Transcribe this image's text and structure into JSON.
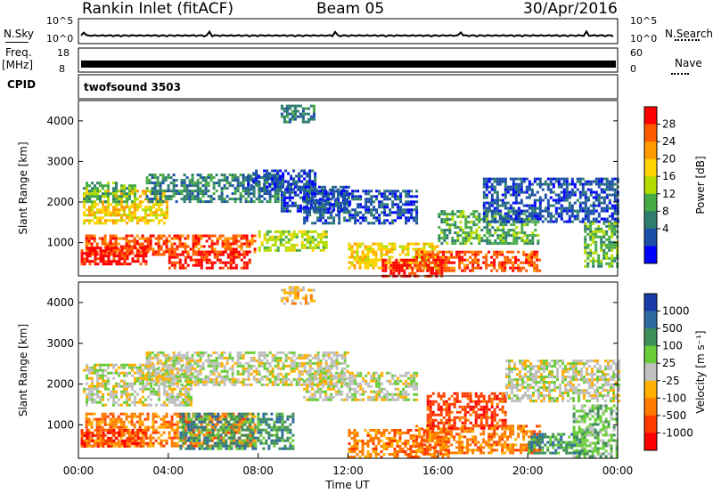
{
  "header": {
    "station": "Rankin Inlet (fitACF)",
    "beam": "Beam 05",
    "date": "30/Apr/2016"
  },
  "noise_panel": {
    "left_label": "N.Sky",
    "right_label": "N.Search",
    "left_ticks": [
      "10^5",
      "10^0"
    ],
    "right_ticks": [
      "10^5",
      "10^0"
    ]
  },
  "freq_panel": {
    "left_label_top": "Freq.",
    "left_label_unit": "[MHz]",
    "right_label": "Nave",
    "left_ticks": [
      "18",
      "8"
    ],
    "right_ticks": [
      "60",
      "0"
    ]
  },
  "cpid_panel": {
    "label": "CPID",
    "value": "twofsound 3503"
  },
  "chart_data": [
    {
      "type": "heatmap",
      "name": "power",
      "ylabel": "Slant Range [km]",
      "ylim": [
        180,
        4500
      ],
      "yticks": [
        "4000",
        "3000",
        "2000",
        "1000"
      ],
      "ytick_values": [
        4000,
        3000,
        2000,
        1000
      ],
      "xlim": [
        0,
        24
      ],
      "colorbar": {
        "label": "Power [dB]",
        "ticks": [
          "28",
          "24",
          "20",
          "16",
          "12",
          "8",
          "4"
        ],
        "colors": [
          "#ff0000",
          "#ff5a00",
          "#ff9b00",
          "#ffd200",
          "#b4dc00",
          "#46aa46",
          "#2e7d6e",
          "#1b4fa8",
          "#0000ff"
        ]
      },
      "regions": [
        {
          "x0": 0.3,
          "x1": 7.8,
          "y0": 700,
          "y1": 1200,
          "c": 1
        },
        {
          "x0": 4.0,
          "x1": 7.6,
          "y0": 400,
          "y1": 800,
          "c": 0
        },
        {
          "x0": 0.1,
          "x1": 3.0,
          "y0": 500,
          "y1": 900,
          "c": 0
        },
        {
          "x0": 0.2,
          "x1": 4.0,
          "y0": 1500,
          "y1": 2300,
          "c": 3
        },
        {
          "x0": 0.2,
          "x1": 2.5,
          "y0": 2000,
          "y1": 2500,
          "c": 5
        },
        {
          "x0": 3.0,
          "x1": 9.0,
          "y0": 2000,
          "y1": 2700,
          "c": 6
        },
        {
          "x0": 7.5,
          "x1": 10.5,
          "y0": 2300,
          "y1": 2800,
          "c": 7
        },
        {
          "x0": 9.0,
          "x1": 12.0,
          "y0": 1800,
          "y1": 2400,
          "c": 7
        },
        {
          "x0": 10.0,
          "x1": 15.0,
          "y0": 1500,
          "y1": 2300,
          "c": 7
        },
        {
          "x0": 12.0,
          "x1": 16.0,
          "y0": 400,
          "y1": 1000,
          "c": 3
        },
        {
          "x0": 13.5,
          "x1": 16.3,
          "y0": 200,
          "y1": 600,
          "c": 0
        },
        {
          "x0": 15.0,
          "x1": 20.5,
          "y0": 300,
          "y1": 800,
          "c": 1
        },
        {
          "x0": 16.0,
          "x1": 20.5,
          "y0": 1000,
          "y1": 1800,
          "c": 5
        },
        {
          "x0": 18.0,
          "x1": 24.0,
          "y0": 1500,
          "y1": 2600,
          "c": 7
        },
        {
          "x0": 22.5,
          "x1": 24.0,
          "y0": 400,
          "y1": 1500,
          "c": 5
        },
        {
          "x0": 8.0,
          "x1": 11.0,
          "y0": 800,
          "y1": 1300,
          "c": 4
        },
        {
          "x0": 9.0,
          "x1": 10.5,
          "y0": 4000,
          "y1": 4400,
          "c": 6
        }
      ]
    },
    {
      "type": "heatmap",
      "name": "velocity",
      "ylabel": "Slant Range [km]",
      "ylim": [
        180,
        4500
      ],
      "yticks": [
        "4000",
        "3000",
        "2000",
        "1000"
      ],
      "ytick_values": [
        4000,
        3000,
        2000,
        1000
      ],
      "xlim": [
        0,
        24
      ],
      "xlabel": "Time UT",
      "xticks": [
        "00:00",
        "04:00",
        "08:00",
        "12:00",
        "16:00",
        "20:00",
        "00:00"
      ],
      "colorbar": {
        "label": "Velocity [m s⁻¹]",
        "ticks": [
          "1000",
          "500",
          "100",
          "25",
          "-25",
          "-100",
          "-500",
          "-1000"
        ],
        "colors": [
          "#1a3aa8",
          "#2e6aa0",
          "#3e8e5a",
          "#6acd3a",
          "#c0c0c0",
          "#ffb000",
          "#ff7a00",
          "#ff3a00",
          "#ff0000"
        ]
      },
      "regions": [
        {
          "x0": 0.3,
          "x1": 7.8,
          "y0": 500,
          "y1": 1300,
          "c": 6
        },
        {
          "x0": 0.1,
          "x1": 3.0,
          "y0": 500,
          "y1": 900,
          "c": 7
        },
        {
          "x0": 4.5,
          "x1": 9.5,
          "y0": 400,
          "y1": 1300,
          "c": 2
        },
        {
          "x0": 0.2,
          "x1": 5.0,
          "y0": 1500,
          "y1": 2500,
          "c": 4
        },
        {
          "x0": 3.0,
          "x1": 12.0,
          "y0": 2000,
          "y1": 2800,
          "c": 4
        },
        {
          "x0": 10.0,
          "x1": 15.0,
          "y0": 1600,
          "y1": 2300,
          "c": 4
        },
        {
          "x0": 12.0,
          "x1": 16.5,
          "y0": 200,
          "y1": 900,
          "c": 6
        },
        {
          "x0": 15.0,
          "x1": 20.5,
          "y0": 300,
          "y1": 1000,
          "c": 6
        },
        {
          "x0": 15.5,
          "x1": 19.0,
          "y0": 900,
          "y1": 1800,
          "c": 7
        },
        {
          "x0": 19.0,
          "x1": 24.0,
          "y0": 1600,
          "y1": 2600,
          "c": 4
        },
        {
          "x0": 22.0,
          "x1": 24.0,
          "y0": 200,
          "y1": 1500,
          "c": 3
        },
        {
          "x0": 9.0,
          "x1": 10.5,
          "y0": 4000,
          "y1": 4400,
          "c": 5
        },
        {
          "x0": 20.0,
          "x1": 22.5,
          "y0": 300,
          "y1": 800,
          "c": 2
        }
      ]
    }
  ]
}
